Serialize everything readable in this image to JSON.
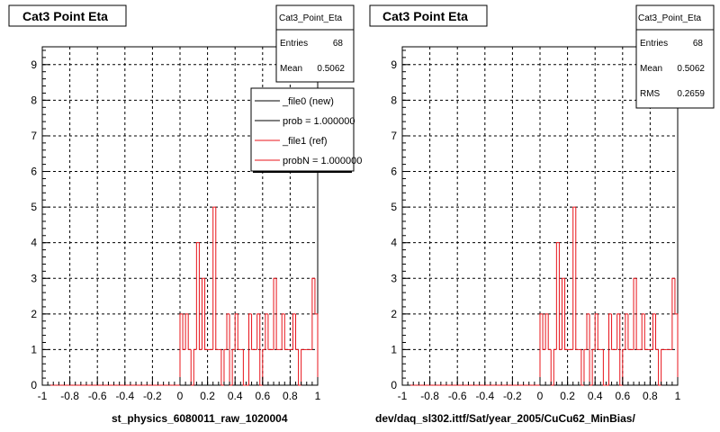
{
  "footer_text": "",
  "colors": {
    "ref": "#e8141b",
    "new": "#000000",
    "frame": "#000000",
    "grid": "#000000"
  },
  "chart_data": [
    {
      "type": "histogram",
      "title": "Cat3 Point Eta",
      "xlabel": "st_physics_6080011_raw_1020004",
      "ylabel": "",
      "xlim": [
        -1,
        1
      ],
      "ylim": [
        0,
        9.5
      ],
      "grid": true,
      "x_tick_labels": [
        "-1",
        "-0.8",
        "-0.6",
        "-0.4",
        "-0.2",
        "0",
        "0.2",
        "0.4",
        "0.6",
        "0.8",
        "1"
      ],
      "y_tick_labels": [
        "0",
        "1",
        "2",
        "3",
        "4",
        "5",
        "6",
        "7",
        "8",
        "9"
      ],
      "bin_edges_range": [
        -1,
        1
      ],
      "nbins": 100,
      "series": [
        {
          "name": "_file1 (ref)",
          "color": "#e8141b",
          "values": [
            0,
            0,
            0,
            0,
            0,
            0,
            0,
            0,
            0,
            0,
            0,
            0,
            0,
            0,
            0,
            0,
            0,
            0,
            0,
            0,
            0,
            0,
            0,
            0,
            0,
            0,
            0,
            0,
            0,
            0,
            0,
            0,
            0,
            0,
            0,
            0,
            0,
            0,
            0,
            0,
            0,
            0,
            0,
            0,
            0,
            0,
            0,
            0,
            0,
            0,
            2,
            1,
            2,
            1,
            0,
            1,
            4,
            1,
            3,
            1,
            1,
            1,
            5,
            1,
            1,
            0,
            1,
            2,
            0,
            1,
            2,
            1,
            1,
            0,
            0,
            2,
            1,
            1,
            2,
            0,
            1,
            2,
            1,
            1,
            3,
            1,
            1,
            2,
            1,
            1,
            1,
            2,
            1,
            0,
            1,
            1,
            1,
            1,
            3,
            2
          ]
        }
      ],
      "stats": {
        "title": "Cat3_Point_Eta",
        "entries_label": "Entries",
        "entries": "68",
        "mean_label": "Mean",
        "mean": "0.5062"
      },
      "legend": [
        {
          "label": "_file0 (new)",
          "color": "#000000"
        },
        {
          "label": "prob = 1.000000",
          "color": "#000000"
        },
        {
          "label": "_file1 (ref)",
          "color": "#e8141b"
        },
        {
          "label": "probN = 1.000000",
          "color": "#e8141b"
        }
      ]
    },
    {
      "type": "histogram",
      "title": "Cat3 Point Eta",
      "xlabel": "dev/daq_sl302.ittf/Sat/year_2005/CuCu62_MinBias/",
      "ylabel": "",
      "xlim": [
        -1,
        1
      ],
      "ylim": [
        0,
        9.5
      ],
      "grid": true,
      "x_tick_labels": [
        "-1",
        "-0.8",
        "-0.6",
        "-0.4",
        "-0.2",
        "0",
        "0.2",
        "0.4",
        "0.6",
        "0.8",
        "1"
      ],
      "y_tick_labels": [
        "0",
        "1",
        "2",
        "3",
        "4",
        "5",
        "6",
        "7",
        "8",
        "9"
      ],
      "bin_edges_range": [
        -1,
        1
      ],
      "nbins": 100,
      "series": [
        {
          "name": "_file0 (new)",
          "color": "#e8141b",
          "values": [
            0,
            0,
            0,
            0,
            0,
            0,
            0,
            0,
            0,
            0,
            0,
            0,
            0,
            0,
            0,
            0,
            0,
            0,
            0,
            0,
            0,
            0,
            0,
            0,
            0,
            0,
            0,
            0,
            0,
            0,
            0,
            0,
            0,
            0,
            0,
            0,
            0,
            0,
            0,
            0,
            0,
            0,
            0,
            0,
            0,
            0,
            0,
            0,
            0,
            0,
            2,
            1,
            2,
            1,
            0,
            1,
            4,
            1,
            3,
            1,
            1,
            1,
            5,
            1,
            1,
            0,
            1,
            2,
            0,
            1,
            2,
            1,
            1,
            0,
            0,
            2,
            1,
            1,
            2,
            0,
            1,
            2,
            1,
            1,
            3,
            1,
            1,
            2,
            1,
            1,
            1,
            2,
            1,
            0,
            1,
            1,
            1,
            1,
            3,
            2
          ]
        }
      ],
      "stats": {
        "title": "Cat3_Point_Eta",
        "entries_label": "Entries",
        "entries": "68",
        "mean_label": "Mean",
        "mean": "0.5062",
        "rms_label": "RMS",
        "rms": "0.2659"
      }
    }
  ]
}
